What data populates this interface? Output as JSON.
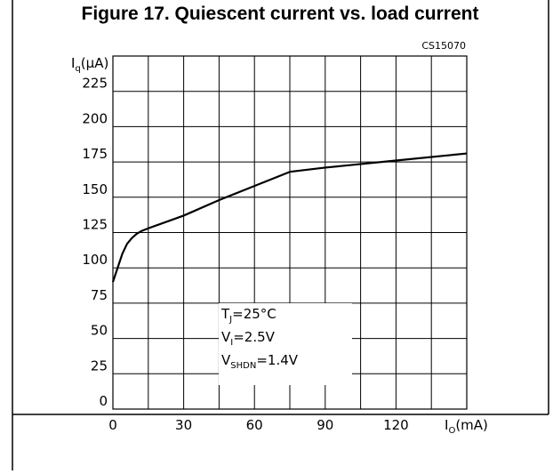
{
  "chart_data": {
    "type": "line",
    "title": "Figure 17. Quiescent current vs. load current",
    "code": "CS15070",
    "y_label": {
      "main": "I",
      "sub": "q",
      "unit": "(µA)"
    },
    "x_label": {
      "main": "I",
      "sub": "O",
      "unit": "(mA)"
    },
    "x": [
      0,
      2,
      4,
      6,
      8,
      10,
      12,
      15,
      30,
      45,
      60,
      75,
      90,
      120,
      150
    ],
    "values": [
      90,
      100,
      110,
      117,
      121,
      124,
      126,
      128,
      137,
      148,
      158,
      168,
      171,
      176,
      181
    ],
    "color": "#000000",
    "xlim": [
      0,
      150
    ],
    "xticks": [
      0,
      30,
      60,
      90,
      120
    ],
    "xgrid": [
      0,
      15,
      30,
      45,
      60,
      75,
      90,
      105,
      120,
      135,
      150
    ],
    "ylim": [
      0,
      250
    ],
    "yticks": [
      0,
      25,
      50,
      75,
      100,
      125,
      150,
      175,
      200,
      225
    ],
    "grid": true,
    "annotations": [
      {
        "main": "T",
        "sub": "J",
        "rest": "=25°C"
      },
      {
        "main": "V",
        "sub": "I",
        "rest": "=2.5V"
      },
      {
        "main": "V",
        "sub": "SHDN",
        "rest": "=1.4V"
      }
    ]
  }
}
